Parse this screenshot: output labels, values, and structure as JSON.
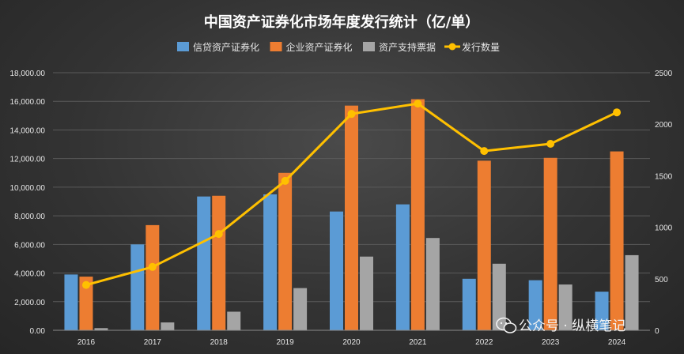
{
  "watermark": {
    "text": "公众号 · 纵横笔记",
    "icon": "wechat-icon"
  },
  "chart_data": {
    "type": "bar",
    "title": "中国资产证券化市场年度发行统计（亿/单）",
    "categories": [
      "2016",
      "2017",
      "2018",
      "2019",
      "2020",
      "2021",
      "2022",
      "2023",
      "2024"
    ],
    "series": [
      {
        "name": "信贷资产证券化",
        "type": "bar",
        "axis": "left",
        "color": "#5b9bd5",
        "values": [
          3900,
          6000,
          9350,
          9500,
          8300,
          8800,
          3600,
          3500,
          2700
        ]
      },
      {
        "name": "企业资产证券化",
        "type": "bar",
        "axis": "left",
        "color": "#ed7d31",
        "values": [
          3750,
          7350,
          9400,
          11000,
          15700,
          16150,
          11850,
          12050,
          12500
        ]
      },
      {
        "name": "资产支持票据",
        "type": "bar",
        "axis": "left",
        "color": "#a5a5a5",
        "values": [
          150,
          550,
          1300,
          2950,
          5150,
          6450,
          4650,
          3200,
          5250
        ]
      },
      {
        "name": "发行数量",
        "type": "line",
        "axis": "right",
        "color": "#ffc000",
        "values": [
          440,
          615,
          935,
          1450,
          2100,
          2200,
          1740,
          1810,
          2115
        ]
      }
    ],
    "y_left": {
      "min": 0,
      "max": 18000,
      "ticks": [
        "0.00",
        "2,000.00",
        "4,000.00",
        "6,000.00",
        "8,000.00",
        "10,000.00",
        "12,000.00",
        "14,000.00",
        "16,000.00",
        "18,000.00"
      ]
    },
    "y_right": {
      "min": 0,
      "max": 2500,
      "ticks": [
        "0",
        "500",
        "1000",
        "1500",
        "2000",
        "2500"
      ]
    },
    "grid": true,
    "legend_position": "top"
  }
}
